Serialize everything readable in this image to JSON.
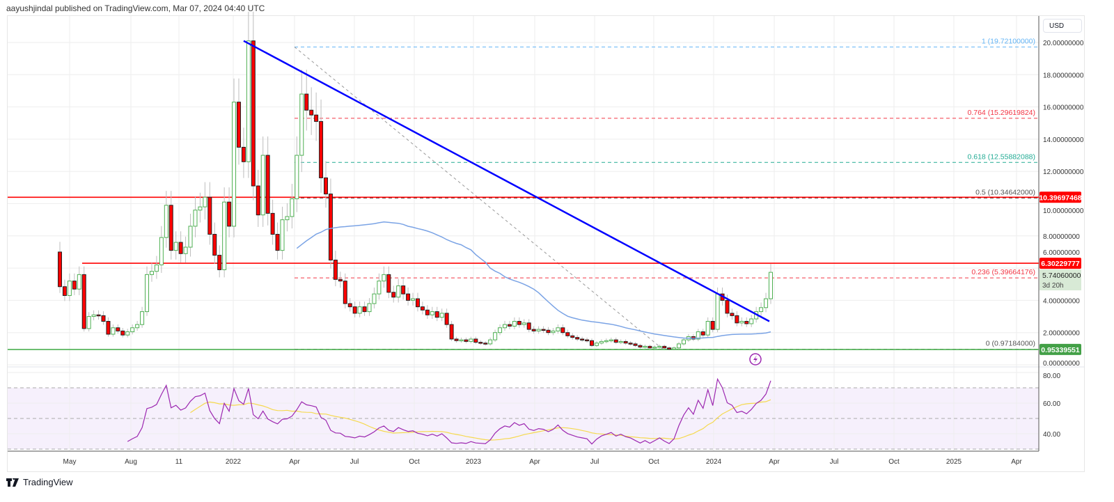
{
  "header": {
    "text": "aayushjindal published on TradingView.com, Mar 07, 2024 04:40 UTC"
  },
  "footer": {
    "logo_text": "TradingView"
  },
  "currency_button": "USD",
  "colors": {
    "up": "#4caf50",
    "down": "#ff0000",
    "trendline": "#0000ff",
    "ma": "#7aa3e5",
    "rsi": "#9c27b0",
    "rsi_ma": "#f5d94f",
    "support": "#4caf50",
    "resistance": "#ff0000"
  },
  "chart_data": {
    "type": "candlestick",
    "interval": "weekly",
    "first_open": 7.0,
    "closes": [
      4.85,
      4.3,
      5.2,
      4.7,
      5.6,
      2.25,
      3.0,
      3.1,
      3.05,
      2.7,
      1.9,
      2.3,
      2.1,
      1.85,
      2.05,
      2.3,
      2.5,
      3.3,
      5.6,
      5.8,
      6.2,
      7.9,
      9.9,
      7.1,
      7.6,
      6.9,
      7.3,
      8.6,
      9.6,
      9.8,
      10.4,
      8.1,
      6.8,
      5.9,
      10.1,
      8.6,
      16.3,
      13.5,
      12.6,
      20.1,
      11.1,
      9.3,
      13.0,
      9.4,
      8.1,
      7.1,
      9.0,
      9.2,
      10.3,
      13.0,
      16.8,
      15.8,
      15.5,
      15.1,
      11.6,
      10.6,
      6.5,
      5.3,
      5.2,
      3.8,
      3.6,
      3.2,
      3.6,
      3.3,
      3.8,
      4.4,
      5.2,
      5.6,
      4.5,
      4.2,
      4.9,
      4.4,
      4.0,
      4.1,
      3.6,
      3.4,
      3.1,
      3.3,
      2.95,
      3.2,
      2.5,
      1.6,
      1.5,
      1.55,
      1.45,
      1.6,
      1.4,
      1.35,
      1.3,
      1.55,
      2.0,
      2.3,
      2.5,
      2.4,
      2.7,
      2.5,
      2.6,
      2.2,
      2.1,
      2.2,
      2.15,
      2.0,
      2.1,
      2.3,
      2.0,
      1.8,
      1.7,
      1.6,
      1.55,
      1.5,
      1.2,
      1.35,
      1.45,
      1.5,
      1.55,
      1.4,
      1.45,
      1.35,
      1.3,
      1.2,
      1.1,
      1.15,
      1.05,
      1.1,
      1.15,
      1.05,
      0.97,
      1.05,
      1.3,
      1.55,
      1.75,
      1.6,
      2.05,
      1.85,
      2.7,
      2.2,
      4.4,
      4.0,
      3.2,
      3.05,
      2.6,
      2.7,
      2.55,
      2.85,
      3.3,
      3.55,
      4.1,
      5.74
    ],
    "y_ticks": [
      "20.00000000",
      "18.00000000",
      "16.00000000",
      "14.00000000",
      "12.00000000",
      "10.00000000",
      "8.00000000",
      "6.00000000",
      "4.00000000",
      "2.00000000",
      "0.00000000"
    ],
    "y_tick_values": [
      20,
      18,
      16,
      14,
      12,
      10,
      8,
      6,
      4,
      2,
      0
    ],
    "x_ticks": [
      "May",
      "Aug",
      "11",
      "2022",
      "Apr",
      "Jul",
      "Oct",
      "2023",
      "Apr",
      "Jul",
      "Oct",
      "2024",
      "Apr",
      "Jul",
      "Oct",
      "2025",
      "Apr"
    ],
    "moving_average": {
      "type": "SMA",
      "period": 50
    },
    "horizontal_levels": [
      {
        "value": 10.39697468,
        "label": "10.39697468",
        "color": "#ff0000"
      },
      {
        "value": 6.30229777,
        "label": "6.30229777",
        "color": "#ff0000"
      },
      {
        "value": 0.95339551,
        "label": "0.95339551",
        "color": "#4caf50"
      }
    ],
    "last_price": {
      "value": 5.7406,
      "label": "5.74060000",
      "countdown": "3d 20h"
    },
    "fibonacci": [
      {
        "ratio": "1",
        "value": 19.721,
        "label": "1 (19.72100000)",
        "color": "#64b5f6"
      },
      {
        "ratio": "0.764",
        "value": 15.29619824,
        "label": "0.764 (15.29619824)",
        "color": "#f23645"
      },
      {
        "ratio": "0.618",
        "value": 12.55882088,
        "label": "0.618 (12.55882088)",
        "color": "#22ab94"
      },
      {
        "ratio": "0.5",
        "value": 10.34642,
        "label": "0.5 (10.34642000)",
        "color": "#555555"
      },
      {
        "ratio": "0.236",
        "value": 5.39664176,
        "label": "0.236 (5.39664176)",
        "color": "#f23645"
      },
      {
        "ratio": "0",
        "value": 0.97184,
        "label": "0 (0.97184000)",
        "color": "#555555"
      }
    ],
    "trendline": {
      "from_price": 20.1,
      "to_price": 2.7
    },
    "rsi": {
      "period": 14,
      "ma_period": 14,
      "bands": [
        70,
        50,
        30
      ],
      "y_ticks": [
        "80.00",
        "60.00",
        "40.00"
      ],
      "y_tick_values": [
        80,
        60,
        40
      ]
    }
  }
}
